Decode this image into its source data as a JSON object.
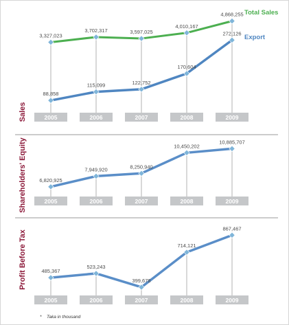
{
  "colors": {
    "total_sales_line": "#4caf50",
    "export_line": "#4f86c1",
    "series_line": "#5a8ec8",
    "marker": "#7fb5d9",
    "title_color": "#8c1a3a",
    "year_box": "#c5c7c9",
    "drop_line": "#b0b0b0",
    "separator": "#9a9a9a"
  },
  "chart_data": [
    {
      "type": "line",
      "title": "Sales",
      "categories": [
        "2005",
        "2006",
        "2007",
        "2008",
        "2009"
      ],
      "series": [
        {
          "name": "Total Sales",
          "values": [
            3327023,
            3702317,
            3597025,
            4010167,
            4868255
          ],
          "labels": [
            "3,327,023",
            "3,702,317",
            "3,597,025",
            "4,010,167",
            "4,868,255"
          ]
        },
        {
          "name": "Export",
          "values": [
            88858,
            115099,
            122752,
            170604,
            272126
          ],
          "labels": [
            "88,858",
            "115,099",
            "122,752",
            "170,604",
            "272,126"
          ]
        }
      ],
      "legend_position": "right"
    },
    {
      "type": "line",
      "title": "Shareholders' Equity",
      "categories": [
        "2005",
        "2006",
        "2007",
        "2008",
        "2009"
      ],
      "series": [
        {
          "values": [
            6820925,
            7949920,
            8250940,
            10450202,
            10885707
          ],
          "labels": [
            "6,820,925",
            "7,949,920",
            "8,250,940",
            "10,450,202",
            "10,885,707"
          ]
        }
      ]
    },
    {
      "type": "line",
      "title": "Profit Before Tax",
      "categories": [
        "2005",
        "2006",
        "2007",
        "2008",
        "2009"
      ],
      "series": [
        {
          "values": [
            485367,
            523243,
            399678,
            714121,
            867467
          ],
          "labels": [
            "485,367",
            "523,243",
            "399,678",
            "714,121",
            "867,467"
          ]
        }
      ]
    }
  ],
  "footnote": {
    "symbol": "*",
    "text": "Taka in thousand"
  }
}
